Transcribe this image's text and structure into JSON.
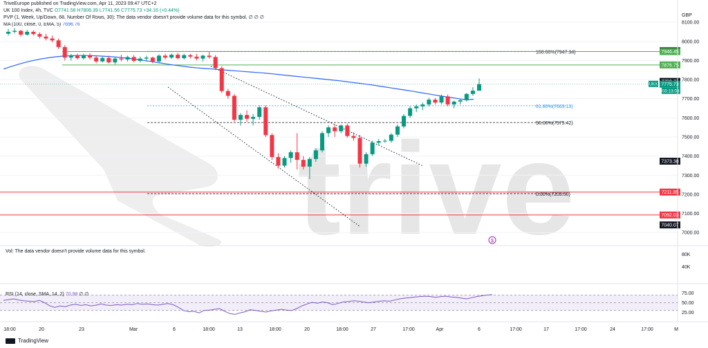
{
  "header": {
    "publish_line": "TriveEurope published on TradingView.com, Apr 11, 2023 09:47 UTC+2",
    "symbol": "UK 100 Index, 4h, TVC",
    "ohlc_o": "O7741.56",
    "ohlc_h": "H7806.39",
    "ohlc_l": "L7741.56",
    "ohlc_c": "C7775.73",
    "change": "+34.16 (+0.44%)",
    "pvp_line": "PVP (1, Week, Up/Down, 68, Number Of Rows, 30): The data vendor doesn't provide volume data for this symbol.",
    "pvp_values": "∅ ∅ ∅",
    "ma_label": "MA (100, close, 0, EMA, 5)",
    "ma_value": "7696.76"
  },
  "vol_note": "Vol: The data vendor doesn't provide volume data for this symbol.",
  "rsi_label": "RSI (14, close, SMA, 14, 2)",
  "rsi_value": "70.98",
  "rsi_extra": "∅ ∅",
  "watermark_text": "trive",
  "footer": {
    "brand": "TradingView"
  },
  "colors": {
    "up": "#089981",
    "down": "#f23645",
    "ma": "#2962ff",
    "rsi": "#7e57c2",
    "green_line": "#4caf50",
    "red_line": "#f23645",
    "fib": "#787b86",
    "fib618": "#2196f3"
  },
  "chart_data": {
    "type": "candlestick",
    "title": "UK 100 Index, 4h, TVC",
    "currency": "GBP",
    "ylim": [
      6950,
      8180
    ],
    "price_ticks": [
      7000,
      7100,
      7200,
      7300,
      7400,
      7500,
      7600,
      7700,
      7800,
      7900,
      8000,
      8100
    ],
    "price_tick_labels": [
      "7000.00",
      "7100.00",
      "7200.00",
      "7300.00",
      "7400.00",
      "7500.00",
      "7600.00",
      "7700.00",
      "7800.00",
      "7900.00",
      "8000.00",
      "8100.00"
    ],
    "x_tick_labels": [
      "18:00",
      "20",
      "23",
      "Mar",
      "6",
      "18:00",
      "13",
      "18:00",
      "20",
      "18:00",
      "27",
      "17:00",
      "Apr",
      "6",
      "17:00",
      "17",
      "17:00",
      "24",
      "17:00",
      "M"
    ],
    "candles": [
      [
        8040,
        8065,
        8030,
        8050
      ],
      [
        8050,
        8070,
        8040,
        8055
      ],
      [
        8055,
        8060,
        8025,
        8035
      ],
      [
        8035,
        8060,
        8030,
        8050
      ],
      [
        8050,
        8058,
        8030,
        8038
      ],
      [
        8038,
        8048,
        8015,
        8025
      ],
      [
        8025,
        8040,
        8005,
        8015
      ],
      [
        8015,
        8030,
        7995,
        8005
      ],
      [
        8005,
        8015,
        7960,
        7970
      ],
      [
        7970,
        7980,
        7900,
        7915
      ],
      [
        7915,
        7935,
        7900,
        7925
      ],
      [
        7925,
        7935,
        7905,
        7912
      ],
      [
        7912,
        7935,
        7905,
        7928
      ],
      [
        7928,
        7938,
        7905,
        7915
      ],
      [
        7915,
        7925,
        7885,
        7895
      ],
      [
        7895,
        7920,
        7890,
        7913
      ],
      [
        7913,
        7925,
        7885,
        7890
      ],
      [
        7890,
        7915,
        7880,
        7910
      ],
      [
        7910,
        7930,
        7895,
        7905
      ],
      [
        7905,
        7925,
        7895,
        7918
      ],
      [
        7918,
        7928,
        7890,
        7898
      ],
      [
        7898,
        7920,
        7890,
        7910
      ],
      [
        7910,
        7925,
        7895,
        7915
      ],
      [
        7915,
        7920,
        7885,
        7895
      ],
      [
        7895,
        7932,
        7890,
        7925
      ],
      [
        7925,
        7935,
        7905,
        7915
      ],
      [
        7915,
        7935,
        7908,
        7930
      ],
      [
        7930,
        7940,
        7905,
        7912
      ],
      [
        7912,
        7935,
        7905,
        7928
      ],
      [
        7928,
        7935,
        7910,
        7920
      ],
      [
        7920,
        7935,
        7900,
        7910
      ],
      [
        7910,
        7930,
        7895,
        7925
      ],
      [
        7925,
        7945,
        7910,
        7918
      ],
      [
        7918,
        7928,
        7850,
        7860
      ],
      [
        7860,
        7870,
        7730,
        7740
      ],
      [
        7740,
        7752,
        7700,
        7715
      ],
      [
        7715,
        7725,
        7580,
        7590
      ],
      [
        7590,
        7625,
        7560,
        7615
      ],
      [
        7615,
        7640,
        7580,
        7595
      ],
      [
        7595,
        7620,
        7560,
        7605
      ],
      [
        7605,
        7665,
        7590,
        7655
      ],
      [
        7655,
        7665,
        7500,
        7510
      ],
      [
        7510,
        7520,
        7380,
        7395
      ],
      [
        7395,
        7415,
        7335,
        7350
      ],
      [
        7350,
        7400,
        7340,
        7390
      ],
      [
        7390,
        7430,
        7365,
        7420
      ],
      [
        7420,
        7520,
        7330,
        7380
      ],
      [
        7380,
        7400,
        7330,
        7345
      ],
      [
        7345,
        7395,
        7280,
        7385
      ],
      [
        7385,
        7440,
        7370,
        7430
      ],
      [
        7430,
        7530,
        7420,
        7520
      ],
      [
        7520,
        7560,
        7500,
        7550
      ],
      [
        7550,
        7565,
        7500,
        7530
      ],
      [
        7530,
        7565,
        7520,
        7560
      ],
      [
        7560,
        7570,
        7495,
        7505
      ],
      [
        7505,
        7525,
        7480,
        7495
      ],
      [
        7495,
        7510,
        7340,
        7360
      ],
      [
        7360,
        7420,
        7345,
        7410
      ],
      [
        7410,
        7480,
        7400,
        7470
      ],
      [
        7470,
        7490,
        7455,
        7478
      ],
      [
        7478,
        7490,
        7470,
        7480
      ],
      [
        7480,
        7520,
        7470,
        7512
      ],
      [
        7512,
        7565,
        7500,
        7555
      ],
      [
        7555,
        7620,
        7545,
        7610
      ],
      [
        7610,
        7660,
        7600,
        7650
      ],
      [
        7650,
        7670,
        7630,
        7660
      ],
      [
        7660,
        7680,
        7640,
        7670
      ],
      [
        7670,
        7705,
        7660,
        7695
      ],
      [
        7695,
        7705,
        7670,
        7680
      ],
      [
        7680,
        7722,
        7670,
        7712
      ],
      [
        7712,
        7722,
        7660,
        7670
      ],
      [
        7670,
        7690,
        7650,
        7685
      ],
      [
        7685,
        7700,
        7670,
        7692
      ],
      [
        7692,
        7730,
        7685,
        7725
      ],
      [
        7725,
        7760,
        7715,
        7742
      ],
      [
        7742,
        7806,
        7742,
        7776
      ]
    ],
    "ma_series": [
      7855,
      7868,
      7880,
      7891,
      7900,
      7908,
      7914,
      7919,
      7923,
      7925,
      7926,
      7926,
      7925,
      7923,
      7921,
      7918,
      7914,
      7910,
      7905,
      7899,
      7893,
      7887,
      7881,
      7875,
      7870,
      7865,
      7861,
      7858,
      7855,
      7852,
      7849,
      7846,
      7843,
      7840,
      7837,
      7834,
      7830,
      7826,
      7822,
      7818,
      7814,
      7810,
      7806,
      7802,
      7798,
      7794,
      7789,
      7784,
      7779,
      7774,
      7768,
      7762,
      7756,
      7750,
      7744,
      7738,
      7731,
      7725,
      7718,
      7712,
      7706,
      7700,
      7695,
      7697
    ],
    "h_lines": [
      {
        "price": 7946.45,
        "label": "7946.45",
        "color": "#4caf50"
      },
      {
        "price": 7876.75,
        "label": "7876.75",
        "color": "#4caf50"
      },
      {
        "price": 7211.85,
        "label": "7211.85",
        "color": "#f23645"
      },
      {
        "price": 7092.03,
        "label": "7092.03",
        "color": "#f23645"
      }
    ],
    "fib_levels": [
      {
        "price": 7947.34,
        "label": "100.00%(7947.34)"
      },
      {
        "price": 7663.19,
        "label": "61.80%(7663.19)"
      },
      {
        "price": 7575.42,
        "label": "50.00%(7575.42)"
      },
      {
        "price": 7203.5,
        "label": "0.00%(7203.50)"
      }
    ],
    "price_labels": [
      {
        "price": 7950.59,
        "label": "7950.59",
        "bg": "#131722"
      },
      {
        "price": 7946.45,
        "label": "7946.45",
        "bg": "#4caf50"
      },
      {
        "price": 7876.75,
        "label": "7876.75",
        "bg": "#4caf50"
      },
      {
        "price": 7790.71,
        "label": "7790.71",
        "bg": "#131722"
      },
      {
        "price": 7775.73,
        "label": "7775.73",
        "bg": "#089981"
      },
      {
        "price": 7373.38,
        "label": "7373.38",
        "bg": "#131722"
      },
      {
        "price": 7211.85,
        "label": "7211.85",
        "bg": "#f23645"
      },
      {
        "price": 7092.03,
        "label": "7092.03",
        "bg": "#f23645"
      },
      {
        "price": 7040.07,
        "label": "7040.07",
        "bg": "#131722"
      }
    ],
    "countdown": "03:13:03",
    "symbol_tag": "UKX",
    "vol_ticks": [
      "80K",
      "40K"
    ],
    "rsi": {
      "ylim": [
        10,
        85
      ],
      "upper": 70,
      "lower": 30,
      "ticks": [
        "75.00",
        "50.00",
        "25.00"
      ],
      "values": [
        56,
        58,
        60,
        57,
        55,
        54,
        53,
        56,
        50,
        42,
        38,
        42,
        40,
        44,
        46,
        43,
        45,
        42,
        44,
        47,
        44,
        43,
        45,
        44,
        46,
        45,
        48,
        46,
        47,
        45,
        44,
        46,
        48,
        45,
        38,
        30,
        27,
        28,
        24,
        30,
        31,
        33,
        35,
        28,
        22,
        20,
        24,
        27,
        32,
        30,
        28,
        26,
        29,
        31,
        33,
        31,
        30,
        35,
        42,
        47,
        51,
        49,
        52,
        50,
        45,
        48,
        52,
        53,
        55,
        54,
        52,
        50,
        52,
        54,
        55,
        54,
        57,
        60,
        62,
        63,
        65,
        66,
        67,
        66,
        64,
        66,
        67,
        65,
        64,
        62,
        60,
        63,
        66,
        68,
        70,
        71
      ]
    }
  }
}
